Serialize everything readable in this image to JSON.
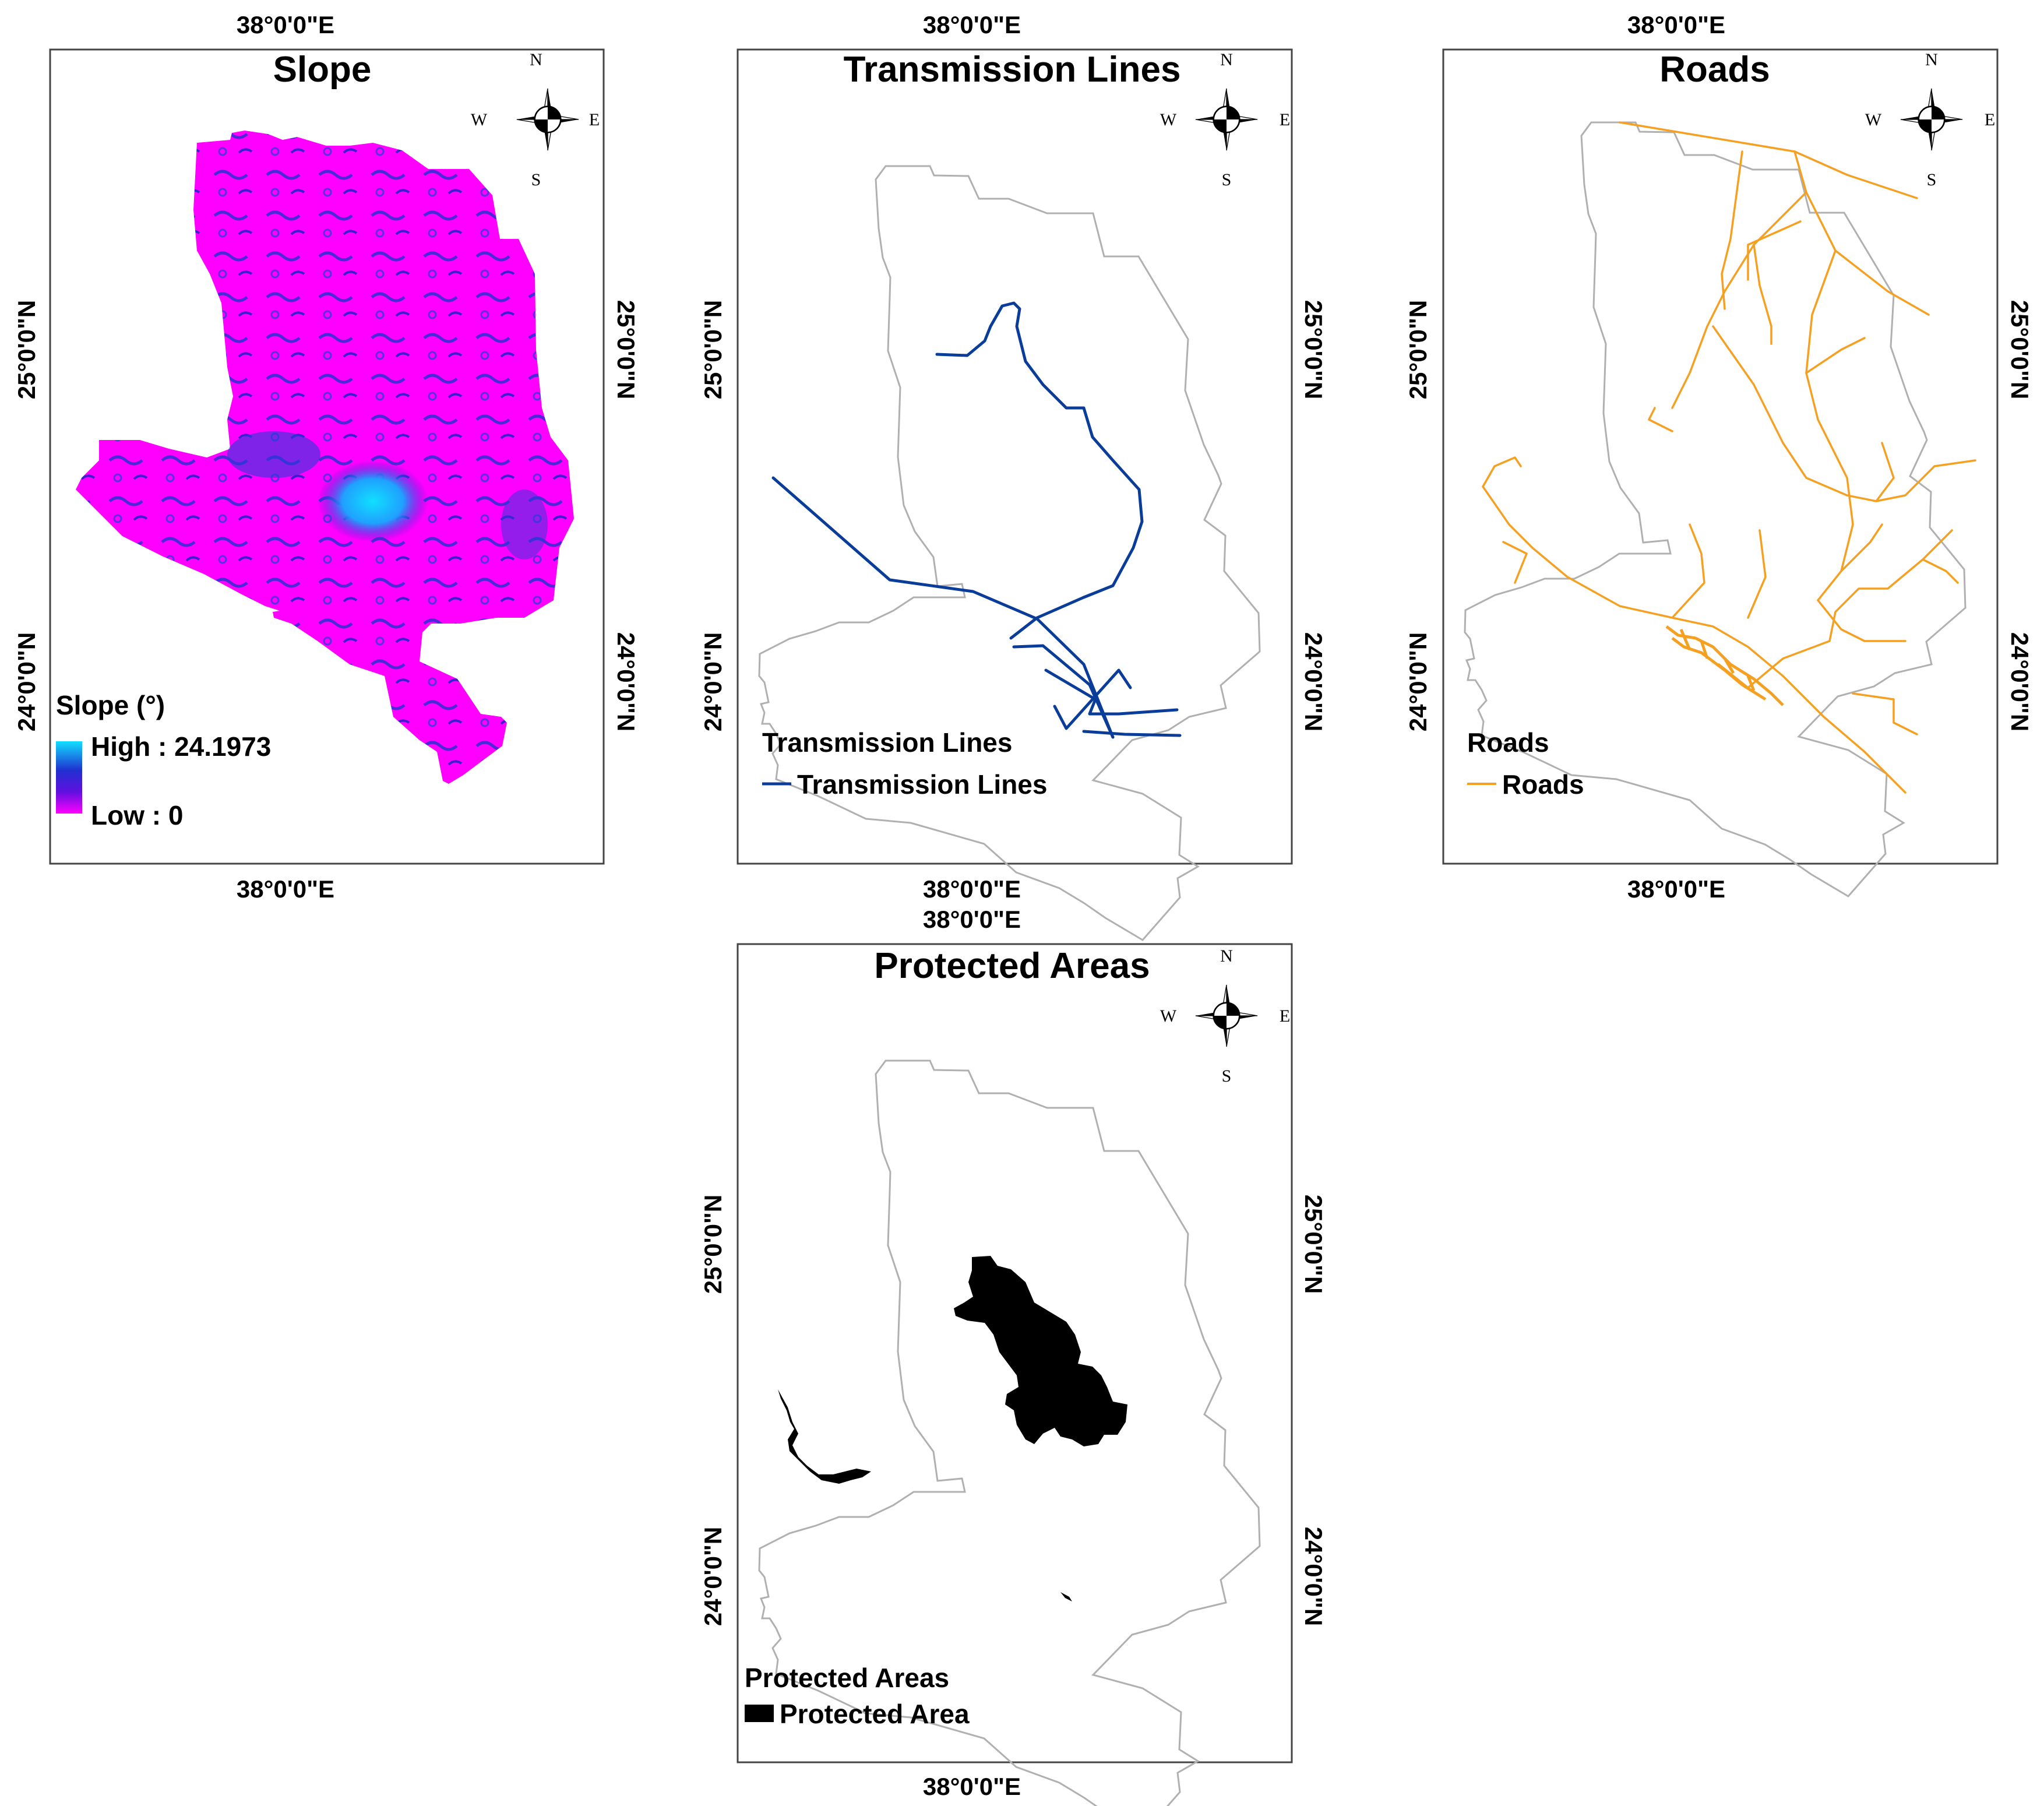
{
  "colors": {
    "slope_low": "#ff00ff",
    "slope_mid": "#2020c8",
    "slope_high": "#10e0ff",
    "transmission": "#0a3d9a",
    "roads": "#f5a020",
    "protected": "#000000",
    "boundary": "#b0b0b0"
  },
  "icons": {
    "compass": "north-arrow-compass-icon"
  },
  "compass": {
    "n": "N",
    "s": "S",
    "e": "E",
    "w": "W"
  },
  "axis_labels": {
    "lon": "38°0'0\"E",
    "lat_upper": "25°0'0\"N",
    "lat_lower": "24°0'0\"N"
  },
  "panels": {
    "slope": {
      "title": "Slope",
      "legend_title": "Slope (°)",
      "legend_high": "High : 24.1973",
      "legend_low": "Low : 0"
    },
    "transmission": {
      "title": "Transmission Lines",
      "legend_title": "Transmission Lines",
      "legend_item": "Transmission Lines"
    },
    "roads": {
      "title": "Roads",
      "legend_title": "Roads",
      "legend_item": "Roads"
    },
    "protected": {
      "title": "Protected Areas",
      "legend_title": "Protected Areas",
      "legend_item": "Protected Area"
    }
  }
}
